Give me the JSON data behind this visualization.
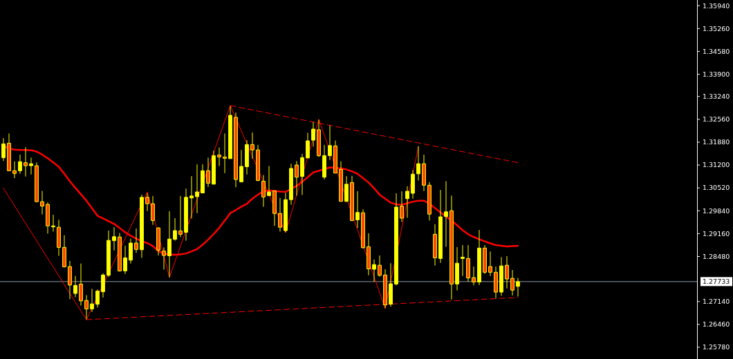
{
  "chart_data": {
    "type": "candlestick",
    "categories": [
      null,
      null,
      null,
      null,
      null,
      null,
      null,
      null,
      null,
      null,
      null,
      null,
      null,
      null,
      null,
      null,
      null,
      null,
      null,
      null,
      null,
      null,
      null,
      null,
      null,
      null,
      null,
      null,
      null,
      null,
      null,
      null,
      null,
      null,
      null,
      null,
      null,
      null,
      null,
      null,
      null,
      null,
      null,
      null,
      null,
      null,
      null,
      null,
      null,
      null,
      null,
      null,
      null,
      null,
      null,
      null,
      null,
      null,
      null,
      null,
      null,
      null,
      null,
      null,
      null,
      null,
      null,
      null,
      null,
      null,
      null,
      null,
      null,
      null,
      null,
      null,
      null,
      null,
      null,
      null,
      null,
      null,
      null,
      null,
      null,
      null,
      null,
      null,
      null,
      null,
      null,
      null,
      null,
      null
    ],
    "ylim": [
      1.2543,
      1.3611
    ],
    "yticks": [
      {
        "value": 1.3594,
        "label": "1.35940"
      },
      {
        "value": 1.3526,
        "label": "1.35260"
      },
      {
        "value": 1.3458,
        "label": "1.34580"
      },
      {
        "value": 1.339,
        "label": "1.33900"
      },
      {
        "value": 1.3324,
        "label": "1.33240"
      },
      {
        "value": 1.3256,
        "label": "1.32560"
      },
      {
        "value": 1.3188,
        "label": "1.31880"
      },
      {
        "value": 1.312,
        "label": "1.31200"
      },
      {
        "value": 1.3052,
        "label": "1.30520"
      },
      {
        "value": 1.2984,
        "label": "1.29840"
      },
      {
        "value": 1.2916,
        "label": "1.29160"
      },
      {
        "value": 1.2848,
        "label": "1.28480"
      },
      {
        "value": 1.2714,
        "label": "1.27140"
      },
      {
        "value": 1.2646,
        "label": "1.26460"
      },
      {
        "value": 1.2578,
        "label": "1.25780"
      }
    ],
    "tick_labels": "y",
    "grid": false,
    "ref_lines": [
      {
        "axis": "y",
        "value": 1.27733,
        "label": "1.27733",
        "color": "#8a9bb0"
      }
    ],
    "series": [
      {
        "type": "candlestick",
        "color": "#ffff00",
        "colors": [
          "#ffff00",
          "#ff4500",
          "#ff4500",
          "#ffff00",
          "#ff4500",
          "#ffff00",
          "#ff4500",
          "#ff4500",
          "#ff4500",
          "#ffff00",
          "#ff4500",
          "#ff4500",
          "#ff4500",
          "#ffff00",
          "#ff4500",
          "#ff4500",
          "#ffff00",
          "#ffff00",
          "#ffff00",
          "#ffff00",
          "#ffff00",
          "#ff4500",
          "#ffff00",
          "#ffff00",
          "#ff4500",
          "#ffff00",
          "#ff4500",
          "#ff4500",
          "#ff4500",
          "#ff4500",
          "#ffff00",
          "#ffff00",
          "#ff4500",
          "#ffff00",
          "#ffff00",
          "#ffff00",
          "#ffff00",
          "#ff4500",
          "#ffff00",
          "#ff4500",
          "#ff4500",
          "#ffff00",
          "#ff4500",
          "#ffff00",
          "#ffff00",
          "#ff4500",
          "#ff4500",
          "#ff4500",
          "#ffff00",
          "#ff4500",
          "#ff4500",
          "#ffff00",
          "#ffff00",
          "#ff4500",
          "#ffff00",
          "#ffff00",
          "#ffff00",
          "#ff4500",
          "#ffff00",
          "#ffff00",
          "#ff4500",
          "#ff4500",
          "#ffff00",
          "#ff4500",
          "#ffff00",
          "#ff4500",
          "#ff4500",
          "#ffff00",
          "#ff4500",
          "#ff4500",
          "#ffff00",
          "#ffff00",
          "#ff4500",
          "#ffff00",
          "#ffff00",
          "#ffff00",
          "#ff4500",
          "#ff4500",
          "#ff4500",
          "#ffff00",
          "#ffff00",
          "#ff4500",
          "#ffff00",
          "#ffff00",
          "#ff4500",
          "#ff4500",
          "#ffff00",
          "#ff4500",
          "#ff4500",
          "#ff4500",
          "#ffff00",
          "#ff4500",
          "#ff4500",
          "#ffff00"
        ],
        "ohlc": [
          [
            1.3142,
            1.32,
            1.3132,
            1.3183
          ],
          [
            1.3185,
            1.3214,
            1.3103,
            1.3103
          ],
          [
            1.3103,
            1.3131,
            1.3081,
            1.3095
          ],
          [
            1.3103,
            1.3151,
            1.3094,
            1.313
          ],
          [
            1.3127,
            1.3173,
            1.3086,
            1.3118
          ],
          [
            1.3118,
            1.3142,
            1.3092,
            1.3124
          ],
          [
            1.3118,
            1.3128,
            1.3011,
            1.3011
          ],
          [
            1.3011,
            1.3043,
            1.2973,
            1.2998
          ],
          [
            1.3003,
            1.3009,
            1.2916,
            1.2939
          ],
          [
            1.2936,
            1.2972,
            1.2922,
            1.2939
          ],
          [
            1.2935,
            1.2957,
            1.285,
            1.2875
          ],
          [
            1.2875,
            1.2911,
            1.2816,
            1.2817
          ],
          [
            1.2818,
            1.2835,
            1.2721,
            1.2763
          ],
          [
            1.2738,
            1.279,
            1.2727,
            1.2762
          ],
          [
            1.2766,
            1.2827,
            1.2702,
            1.2716
          ],
          [
            1.2717,
            1.2733,
            1.2661,
            1.2692
          ],
          [
            1.2692,
            1.2752,
            1.2683,
            1.2707
          ],
          [
            1.2706,
            1.275,
            1.2696,
            1.2745
          ],
          [
            1.2743,
            1.2798,
            1.2726,
            1.2793
          ],
          [
            1.2792,
            1.2925,
            1.2787,
            1.2896
          ],
          [
            1.2895,
            1.2935,
            1.2866,
            1.2907
          ],
          [
            1.2906,
            1.2918,
            1.2803,
            1.2805
          ],
          [
            1.2805,
            1.288,
            1.2796,
            1.2844
          ],
          [
            1.2837,
            1.2901,
            1.2827,
            1.2888
          ],
          [
            1.2888,
            1.2931,
            1.2859,
            1.2869
          ],
          [
            1.2868,
            1.3032,
            1.2844,
            1.3024
          ],
          [
            1.3024,
            1.3036,
            1.2983,
            1.3005
          ],
          [
            1.3005,
            1.3028,
            1.2942,
            1.2955
          ],
          [
            1.2933,
            1.2935,
            1.2851,
            1.2867
          ],
          [
            1.2864,
            1.2875,
            1.2809,
            1.2851
          ],
          [
            1.285,
            1.2983,
            1.2786,
            1.29
          ],
          [
            1.2899,
            1.2962,
            1.2895,
            1.2925
          ],
          [
            1.2924,
            1.3028,
            1.2906,
            1.2914
          ],
          [
            1.292,
            1.305,
            1.2895,
            1.3024
          ],
          [
            1.3022,
            1.3087,
            1.2961,
            1.3028
          ],
          [
            1.3026,
            1.3122,
            1.2977,
            1.304
          ],
          [
            1.3037,
            1.3122,
            1.3036,
            1.3103
          ],
          [
            1.3103,
            1.3142,
            1.3055,
            1.3066
          ],
          [
            1.3063,
            1.3163,
            1.3063,
            1.3148
          ],
          [
            1.315,
            1.3172,
            1.3117,
            1.3144
          ],
          [
            1.3144,
            1.3214,
            1.3096,
            1.314
          ],
          [
            1.3139,
            1.3295,
            1.3139,
            1.3268
          ],
          [
            1.3262,
            1.3276,
            1.3054,
            1.3077
          ],
          [
            1.307,
            1.3165,
            1.3069,
            1.3116
          ],
          [
            1.3115,
            1.3194,
            1.3092,
            1.3181
          ],
          [
            1.3181,
            1.3217,
            1.3139,
            1.3165
          ],
          [
            1.3165,
            1.318,
            1.3072,
            1.3074
          ],
          [
            1.3072,
            1.309,
            1.2996,
            1.3025
          ],
          [
            1.3029,
            1.3117,
            1.3028,
            1.304
          ],
          [
            1.3043,
            1.3044,
            1.2939,
            1.2976
          ],
          [
            1.2976,
            1.3022,
            1.2922,
            1.2935
          ],
          [
            1.2925,
            1.3037,
            1.292,
            1.3017
          ],
          [
            1.3017,
            1.3124,
            1.3002,
            1.311
          ],
          [
            1.312,
            1.3132,
            1.3029,
            1.3084
          ],
          [
            1.3086,
            1.3153,
            1.3031,
            1.3142
          ],
          [
            1.3141,
            1.3216,
            1.3141,
            1.3192
          ],
          [
            1.3194,
            1.3248,
            1.3175,
            1.3227
          ],
          [
            1.3225,
            1.3255,
            1.3144,
            1.3148
          ],
          [
            1.3084,
            1.318,
            1.3077,
            1.3148
          ],
          [
            1.3148,
            1.3238,
            1.3135,
            1.3178
          ],
          [
            1.3177,
            1.3193,
            1.3096,
            1.3096
          ],
          [
            1.3107,
            1.3131,
            1.3012,
            1.3012
          ],
          [
            1.3012,
            1.3087,
            1.301,
            1.3063
          ],
          [
            1.3068,
            1.3088,
            1.2953,
            1.2955
          ],
          [
            1.2957,
            1.3042,
            1.2933,
            1.2979
          ],
          [
            1.2978,
            1.2988,
            1.2872,
            1.2874
          ],
          [
            1.2877,
            1.2917,
            1.2792,
            1.2811
          ],
          [
            1.281,
            1.2839,
            1.2773,
            1.2824
          ],
          [
            1.2822,
            1.2851,
            1.2788,
            1.2792
          ],
          [
            1.2793,
            1.281,
            1.2694,
            1.2704
          ],
          [
            1.2706,
            1.2828,
            1.2699,
            1.2767
          ],
          [
            1.2766,
            1.3036,
            1.2762,
            1.2995
          ],
          [
            1.2998,
            1.3042,
            1.2951,
            1.2962
          ],
          [
            1.302,
            1.3057,
            1.2963,
            1.3042
          ],
          [
            1.3036,
            1.3105,
            1.302,
            1.3093
          ],
          [
            1.3094,
            1.3176,
            1.3074,
            1.3124
          ],
          [
            1.3124,
            1.3151,
            1.3043,
            1.306
          ],
          [
            1.306,
            1.3069,
            1.2955,
            1.2974
          ],
          [
            1.2914,
            1.2944,
            1.2821,
            1.2844
          ],
          [
            1.2842,
            1.3046,
            1.2829,
            1.2966
          ],
          [
            1.2967,
            1.3072,
            1.2877,
            1.2981
          ],
          [
            1.2984,
            1.3029,
            1.272,
            1.2766
          ],
          [
            1.2766,
            1.2876,
            1.2747,
            1.2828
          ],
          [
            1.2842,
            1.2882,
            1.279,
            1.2846
          ],
          [
            1.2842,
            1.2882,
            1.2773,
            1.2784
          ],
          [
            1.2785,
            1.2818,
            1.2762,
            1.2772
          ],
          [
            1.2772,
            1.2927,
            1.2763,
            1.2873
          ],
          [
            1.2873,
            1.2882,
            1.2796,
            1.2801
          ],
          [
            1.2818,
            1.2863,
            1.279,
            1.2801
          ],
          [
            1.2801,
            1.2818,
            1.2724,
            1.2742
          ],
          [
            1.2742,
            1.2846,
            1.2731,
            1.282
          ],
          [
            1.2822,
            1.2849,
            1.2753,
            1.2781
          ],
          [
            1.2783,
            1.2808,
            1.2732,
            1.2748
          ],
          [
            1.2759,
            1.2784,
            1.2729,
            1.2773
          ]
        ]
      },
      {
        "type": "line",
        "color": "#ff0000",
        "line_style": "solid",
        "values": [
          1.3177,
          1.3169,
          1.3166,
          1.3165,
          1.3165,
          1.3164,
          1.316,
          1.3151,
          1.314,
          1.3128,
          1.3115,
          1.3094,
          1.3072,
          1.3052,
          1.3033,
          1.3014,
          1.2992,
          1.2969,
          1.2961,
          1.2953,
          1.2945,
          1.2933,
          1.292,
          1.291,
          1.2901,
          1.2893,
          1.2888,
          1.2879,
          1.2864,
          1.2856,
          1.2854,
          1.2853,
          1.2854,
          1.2857,
          1.2863,
          1.287,
          1.2883,
          1.2898,
          1.2915,
          1.2933,
          1.2955,
          1.2977,
          1.2986,
          1.2996,
          1.3005,
          1.302,
          1.3032,
          1.3042,
          1.3044,
          1.3043,
          1.3041,
          1.304,
          1.3049,
          1.3058,
          1.307,
          1.3084,
          1.3098,
          1.3103,
          1.3108,
          1.3113,
          1.3112,
          1.311,
          1.3107,
          1.3101,
          1.3094,
          1.3081,
          1.3068,
          1.3051,
          1.3032,
          1.302,
          1.3008,
          1.3003,
          1.3002,
          1.3006,
          1.3011,
          1.3014,
          1.3014,
          1.3005,
          1.2992,
          1.2979,
          1.2967,
          1.2955,
          1.2941,
          1.2926,
          1.2914,
          1.2906,
          1.2899,
          1.2893,
          1.2887,
          1.2882,
          1.288,
          1.2878,
          1.2879,
          1.288
        ]
      },
      {
        "type": "line",
        "color": "#ff0000",
        "line_style": "dashed",
        "values": [
          null,
          null,
          null,
          null,
          null,
          null,
          null,
          null,
          null,
          null,
          null,
          null,
          null,
          null,
          null,
          null,
          null,
          null,
          null,
          null,
          null,
          null,
          null,
          null,
          null,
          null,
          null,
          null,
          null,
          null,
          null,
          null,
          null,
          null,
          null,
          null,
          null,
          null,
          null,
          null,
          null,
          1.3297,
          null,
          null,
          null,
          null,
          null,
          null,
          null,
          null,
          null,
          null,
          null,
          null,
          null,
          null,
          null,
          null,
          null,
          null,
          null,
          null,
          null,
          null,
          null,
          null,
          null,
          null,
          null,
          null,
          null,
          null,
          null,
          null,
          null,
          null,
          null,
          null,
          null,
          null,
          null,
          null,
          null,
          null,
          null,
          null,
          null,
          null,
          null,
          null,
          null,
          null,
          null,
          1.3127
        ]
      },
      {
        "type": "line",
        "color": "#ff0000",
        "line_style": "dashed",
        "values": [
          null,
          null,
          null,
          null,
          null,
          null,
          null,
          null,
          null,
          null,
          null,
          null,
          null,
          null,
          null,
          1.266,
          null,
          null,
          null,
          null,
          null,
          null,
          null,
          null,
          null,
          null,
          null,
          null,
          null,
          null,
          null,
          null,
          null,
          null,
          null,
          null,
          null,
          null,
          null,
          null,
          null,
          null,
          null,
          null,
          null,
          null,
          null,
          null,
          null,
          null,
          null,
          null,
          null,
          null,
          null,
          null,
          null,
          null,
          null,
          null,
          null,
          null,
          null,
          null,
          null,
          null,
          null,
          null,
          null,
          null,
          null,
          null,
          null,
          null,
          null,
          null,
          null,
          null,
          null,
          null,
          null,
          null,
          null,
          null,
          null,
          null,
          null,
          null,
          null,
          null,
          null,
          null,
          null,
          1.2726
        ]
      },
      {
        "type": "line",
        "color": "#ff0000",
        "line_style": "solid",
        "values": [
          1.3051,
          null,
          null,
          null,
          null,
          null,
          null,
          null,
          null,
          null,
          null,
          null,
          null,
          null,
          null,
          1.266,
          null,
          null,
          null,
          null,
          null,
          null,
          null,
          null,
          null,
          null,
          1.304,
          null,
          null,
          null,
          1.2786,
          null,
          null,
          null,
          null,
          null,
          null,
          null,
          null,
          null,
          null,
          1.3297,
          null,
          null,
          null,
          null,
          null,
          null,
          null,
          null,
          null,
          1.2919,
          null,
          null,
          null,
          null,
          null,
          1.3256,
          null,
          null,
          null,
          null,
          null,
          null,
          null,
          null,
          null,
          null,
          null,
          1.2693,
          null,
          null,
          null,
          null,
          null,
          1.3174,
          null,
          null,
          null,
          null,
          null,
          null,
          null,
          null,
          null,
          null,
          null,
          null,
          null,
          null,
          null,
          null,
          null,
          null
        ]
      }
    ]
  }
}
